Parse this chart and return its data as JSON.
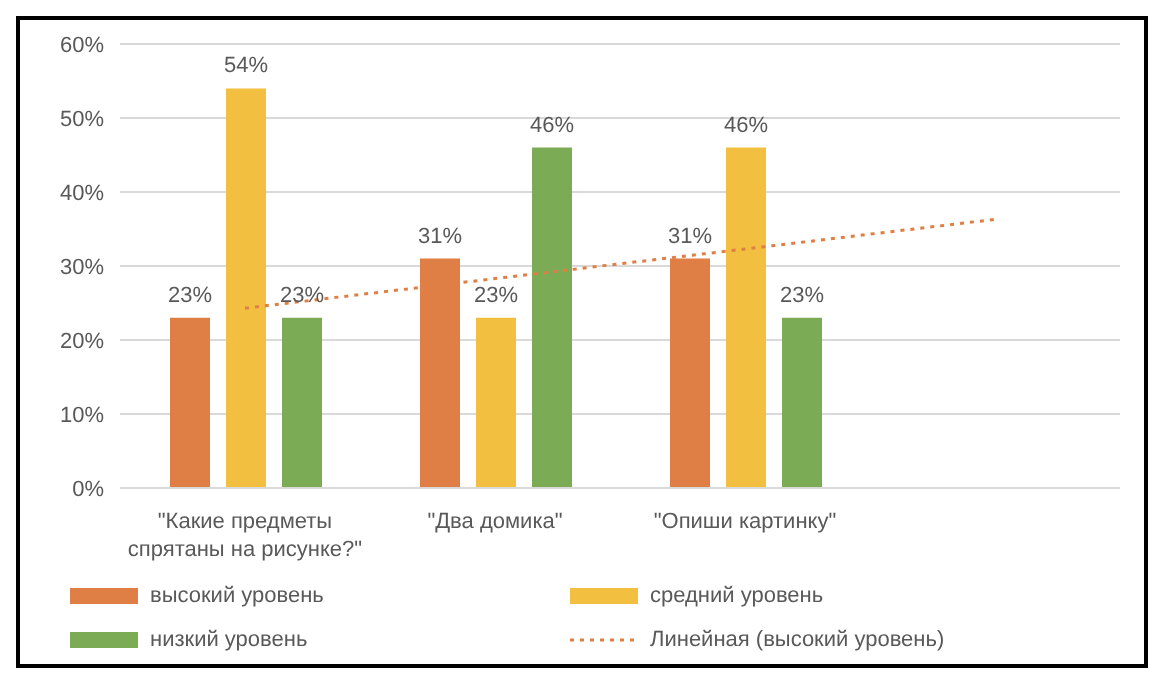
{
  "chart_data": {
    "type": "bar",
    "categories": [
      "\"Какие предметы спрятаны на рисунке?\"",
      "\"Два домика\"",
      "\"Опиши картинку\"",
      null
    ],
    "series": [
      {
        "name": "высокий уровень",
        "color": "#e07f45",
        "values": [
          23,
          31,
          31,
          null
        ],
        "value_labels": [
          "23%",
          "31%",
          "31%",
          null
        ]
      },
      {
        "name": "средний уровень",
        "color": "#f3bf41",
        "values": [
          54,
          23,
          46,
          null
        ],
        "value_labels": [
          "54%",
          "23%",
          "46%",
          null
        ]
      },
      {
        "name": "низкий уровень",
        "color": "#7cab55",
        "values": [
          23,
          46,
          23,
          null
        ],
        "value_labels": [
          "23%",
          "46%",
          "23%",
          null
        ]
      },
      {
        "name": "Линейная (высокий уровень)",
        "type": "line",
        "color": "#e07f45",
        "values": [
          24.3,
          28.3,
          32.3,
          36.3
        ],
        "line_style": "dotted",
        "marker": "none"
      }
    ],
    "ylim": [
      0,
      60
    ],
    "yticks": [
      {
        "value": 0,
        "label": "0%"
      },
      {
        "value": 10,
        "label": "10%"
      },
      {
        "value": 20,
        "label": "20%"
      },
      {
        "value": 30,
        "label": "30%"
      },
      {
        "value": 40,
        "label": "40%"
      },
      {
        "value": 50,
        "label": "50%"
      },
      {
        "value": 60,
        "label": "60%"
      }
    ],
    "grid": "y",
    "legend": "bottom"
  }
}
